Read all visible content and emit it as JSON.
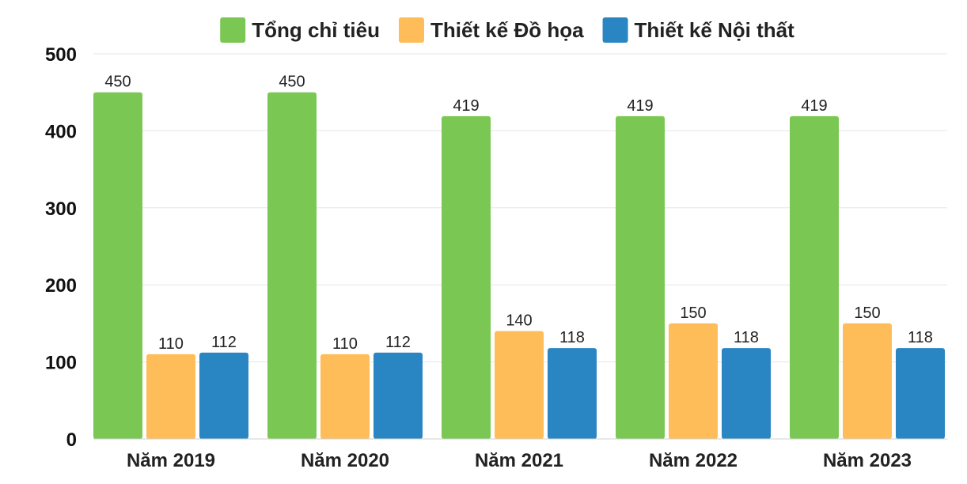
{
  "chart_data": {
    "type": "bar",
    "categories": [
      "Năm 2019",
      "Năm 2020",
      "Năm 2021",
      "Năm 2022",
      "Năm 2023"
    ],
    "series": [
      {
        "name": "Tổng chỉ tiêu",
        "color": "#7ac853",
        "values": [
          450,
          450,
          419,
          419,
          419
        ]
      },
      {
        "name": "Thiết kế Đồ họa",
        "color": "#ffbd59",
        "values": [
          110,
          110,
          140,
          150,
          150
        ]
      },
      {
        "name": "Thiết kế Nội thất",
        "color": "#2a86c2",
        "values": [
          112,
          112,
          118,
          118,
          118
        ]
      }
    ],
    "ylim": [
      0,
      500
    ],
    "yticks": [
      0,
      100,
      200,
      300,
      400,
      500
    ],
    "grid": true,
    "legend_position": "top-center",
    "data_labels": true
  }
}
